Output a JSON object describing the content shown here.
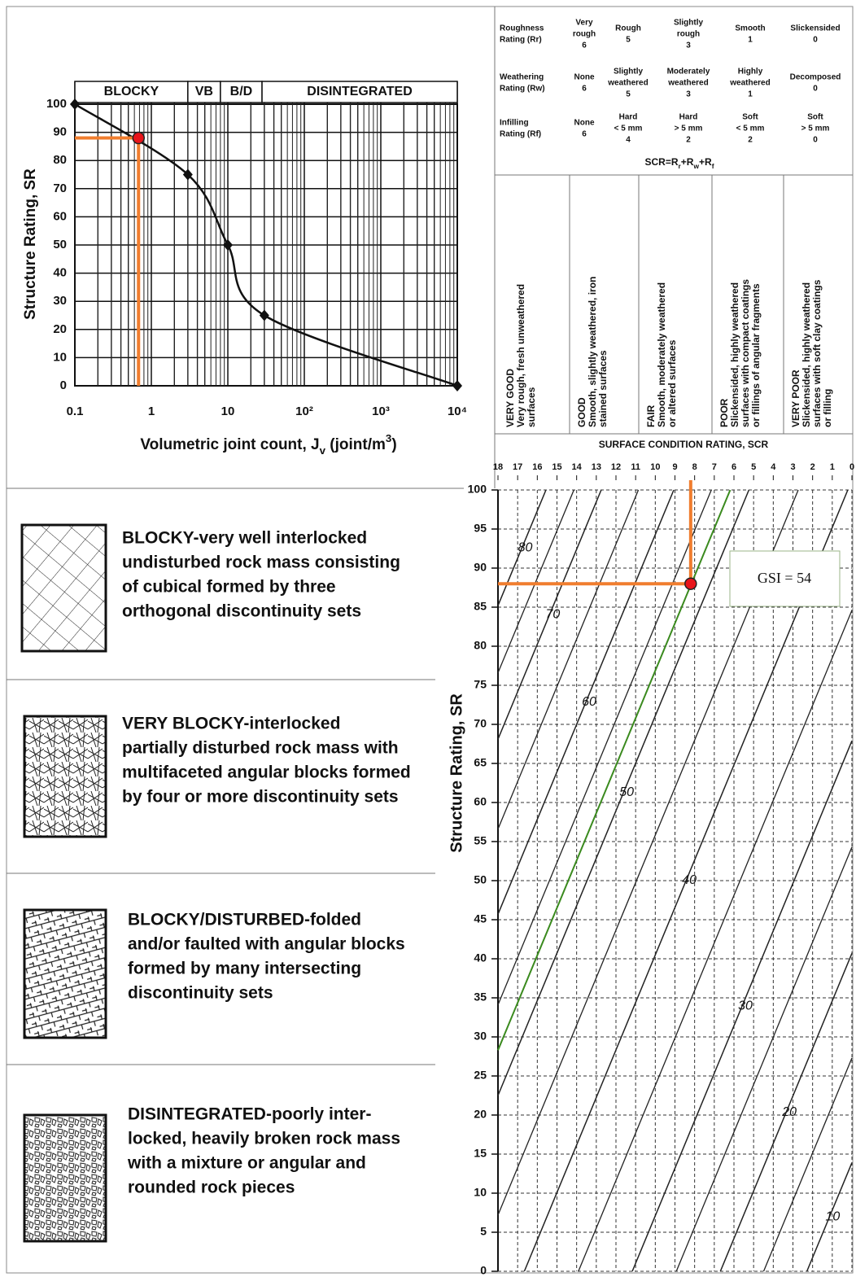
{
  "chart_data": [
    {
      "type": "line",
      "ylabel": "Structure Rating, SR",
      "xlabel": [
        "Volumetric joint count, J",
        "v",
        " (joint/m",
        "3",
        ")"
      ],
      "x": [
        0.1,
        3,
        10,
        30,
        10000
      ],
      "values": [
        100,
        75,
        50,
        25,
        0
      ],
      "color": "#111111",
      "xlim": [
        0.1,
        10000
      ],
      "xlog": true,
      "ylim": [
        0,
        100
      ],
      "xticks": [
        0.1,
        1,
        10,
        {
          "value": 100,
          "label": "10²"
        },
        {
          "value": 1000,
          "label": "10³"
        },
        {
          "value": 10000,
          "label": "10⁴"
        }
      ],
      "yticks": [
        0,
        10,
        20,
        30,
        40,
        50,
        60,
        70,
        80,
        90,
        100
      ],
      "grid": true,
      "minor_grid": true,
      "bands": [
        {
          "label": "BLOCKY",
          "from": 0.1,
          "to": 3
        },
        {
          "label": "VB",
          "from": 3,
          "to": 8
        },
        {
          "label": "B/D",
          "from": 8,
          "to": 28
        },
        {
          "label": "DISINTEGRATED",
          "from": 28,
          "to": 10000
        }
      ],
      "marker": {
        "x": 0.68,
        "y": 88,
        "color": "#e8141a",
        "guide_color": "#f07d2e"
      }
    },
    {
      "type": "line",
      "xlabel": "SURFACE CONDITION RATING, SCR",
      "ylabel": "Structure Rating, SR",
      "xlim": [
        18,
        0
      ],
      "ylim": [
        0,
        100
      ],
      "xticks": [
        18,
        17,
        16,
        15,
        14,
        13,
        12,
        11,
        10,
        9,
        8,
        7,
        6,
        5,
        4,
        3,
        2,
        1,
        0
      ],
      "yticks": [
        0,
        5,
        10,
        15,
        20,
        25,
        30,
        35,
        40,
        45,
        50,
        55,
        60,
        65,
        70,
        75,
        80,
        85,
        90,
        95,
        100
      ],
      "grid": true,
      "grid_style": "dashed",
      "series": [
        {
          "name": "80",
          "color": "#222222",
          "x": [
            18,
            15.56
          ],
          "values": [
            85.2,
            100
          ]
        },
        {
          "name": "70",
          "color": "#222222",
          "x": [
            18,
            12.75
          ],
          "values": [
            68.1,
            100
          ]
        },
        {
          "name": "60",
          "color": "#222222",
          "x": [
            18,
            9.06
          ],
          "values": [
            45.7,
            100
          ]
        },
        {
          "name": "50",
          "color": "#222222",
          "x": [
            18,
            5.24
          ],
          "values": [
            22.5,
            100
          ]
        },
        {
          "name": "40",
          "color": "#222222",
          "x": [
            16.66,
            0.21
          ],
          "values": [
            0,
            100
          ]
        },
        {
          "name": "30",
          "color": "#222222",
          "x": [
            11.17,
            0
          ],
          "values": [
            0,
            67.9
          ]
        },
        {
          "name": "20",
          "color": "#222222",
          "x": [
            6.69,
            0
          ],
          "values": [
            0,
            40.7
          ]
        },
        {
          "name": "10",
          "color": "#222222",
          "x": [
            2.29,
            0
          ],
          "values": [
            0,
            13.9
          ]
        }
      ],
      "unlabeled_lines": [
        {
          "x": [
            18,
            14.14
          ],
          "values": [
            76.6,
            100
          ]
        },
        {
          "x": [
            18,
            10.86
          ],
          "values": [
            56.6,
            100
          ]
        },
        {
          "x": [
            18,
            7.15
          ],
          "values": [
            34.1,
            100
          ]
        },
        {
          "x": [
            18,
            2.73
          ],
          "values": [
            7.2,
            100
          ]
        },
        {
          "x": [
            13.91,
            0
          ],
          "values": [
            0,
            84.6
          ]
        },
        {
          "x": [
            8.93,
            0
          ],
          "values": [
            0,
            54.3
          ]
        },
        {
          "x": [
            4.49,
            0
          ],
          "values": [
            0,
            27.3
          ]
        }
      ],
      "highlight": {
        "color": "#3a8a1e",
        "x": [
          18,
          6.19
        ],
        "values": [
          28.3,
          100
        ]
      },
      "marker": {
        "x": 8.2,
        "y": 88,
        "color": "#e8141a",
        "guide_color": "#f07d2e"
      },
      "annotation": "GSI = 54"
    }
  ],
  "scr_table": {
    "rows": [
      {
        "label": [
          "Roughness",
          "Rating (Rr)"
        ],
        "cells": [
          {
            "text": [
              "Very",
              "rough"
            ],
            "rating": 6
          },
          {
            "text": [
              "Rough"
            ],
            "rating": 5
          },
          {
            "text": [
              "Slightly",
              "rough"
            ],
            "rating": 3
          },
          {
            "text": [
              "Smooth"
            ],
            "rating": 1
          },
          {
            "text": [
              "Slickensided"
            ],
            "rating": 0
          }
        ]
      },
      {
        "label": [
          "Weathering",
          "Rating (Rw)"
        ],
        "cells": [
          {
            "text": [
              "None"
            ],
            "rating": 6
          },
          {
            "text": [
              "Slightly",
              "weathered"
            ],
            "rating": 5
          },
          {
            "text": [
              "Moderately",
              "weathered"
            ],
            "rating": 3
          },
          {
            "text": [
              "Highly",
              "weathered"
            ],
            "rating": 1
          },
          {
            "text": [
              "Decomposed"
            ],
            "rating": 0
          }
        ]
      },
      {
        "label": [
          "Infilling",
          "Rating (Rf)"
        ],
        "cells": [
          {
            "text": [
              "None"
            ],
            "rating": 6
          },
          {
            "text": [
              "Hard",
              "< 5 mm"
            ],
            "rating": 4
          },
          {
            "text": [
              "Hard",
              "> 5 mm"
            ],
            "rating": 2
          },
          {
            "text": [
              "Soft",
              "< 5 mm"
            ],
            "rating": 2
          },
          {
            "text": [
              "Soft",
              "> 5 mm"
            ],
            "rating": 0
          }
        ]
      }
    ],
    "formula": [
      "SCR=R",
      "r",
      "+R",
      "w",
      "+R",
      "f"
    ]
  },
  "conditions": [
    {
      "title": "VERY GOOD",
      "lines": [
        "Very rough, fresh unweathered",
        "surfaces"
      ]
    },
    {
      "title": "GOOD",
      "lines": [
        "Smooth, slightly weathered, iron",
        "stained surfaces"
      ]
    },
    {
      "title": "FAIR",
      "lines": [
        "Smooth, moderately weathered",
        "or altered surfaces"
      ]
    },
    {
      "title": "POOR",
      "lines": [
        "Slickensided, highly weathered",
        "surfaces with compact coatings",
        "or fillings of angular fragments"
      ]
    },
    {
      "title": "VERY POOR",
      "lines": [
        "Slickensided, highly weathered",
        "surfaces with soft clay coatings",
        "or filling"
      ]
    }
  ],
  "structures": [
    {
      "lines": [
        "BLOCKY-very well interlocked",
        "undisturbed rock mass consisting",
        "of cubical formed by three",
        "orthogonal discontinuity sets"
      ]
    },
    {
      "lines": [
        "VERY BLOCKY-interlocked",
        "partially disturbed rock mass with",
        "multifaceted angular blocks formed",
        "by four or more discontinuity sets"
      ]
    },
    {
      "lines": [
        "BLOCKY/DISTURBED-folded",
        "and/or faulted with angular blocks",
        "formed by many intersecting",
        "discontinuity sets"
      ]
    },
    {
      "lines": [
        "DISINTEGRATED-poorly inter-",
        "locked, heavily broken rock mass",
        "with a mixture or angular and",
        "rounded rock pieces"
      ]
    }
  ]
}
